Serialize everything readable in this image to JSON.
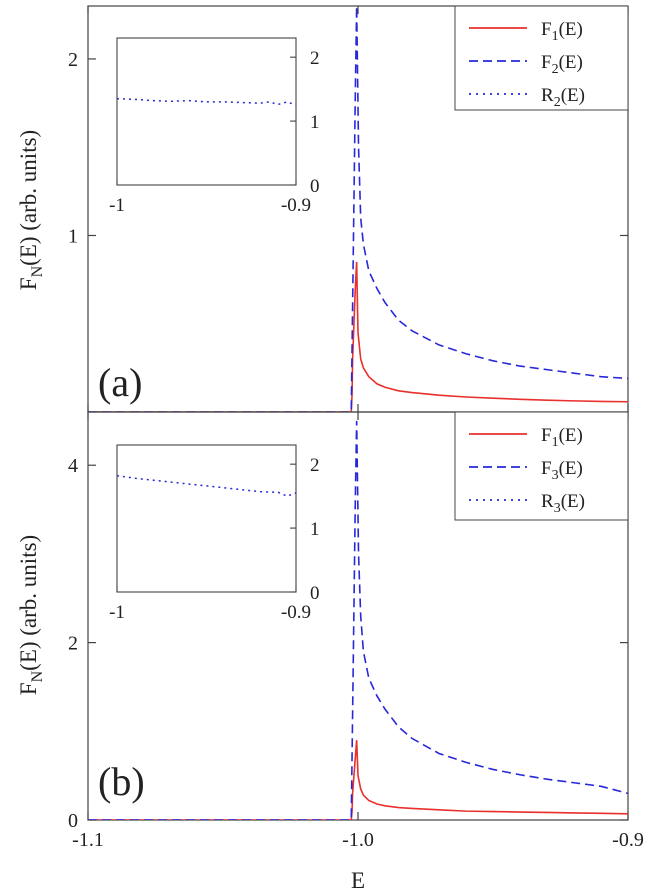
{
  "chart_data": [
    {
      "type": "line",
      "panel_label": "(a)",
      "ylabel": "F_N(E) (arb. units)",
      "xlim": [
        -1.1,
        -0.9
      ],
      "ylim": [
        0,
        2.3
      ],
      "yticks": [
        1,
        2
      ],
      "ytick_labels": [
        "1",
        "2"
      ],
      "legend_position": "top-right",
      "series": [
        {
          "name": "F1(E)",
          "sub": "1",
          "style": "solid",
          "color": "#e8302c",
          "x": [
            -1.1,
            -1.0025,
            -1.0022,
            -1.002,
            -1.0015,
            -1.001,
            -1.0005,
            -1.0,
            -0.999,
            -0.998,
            -0.996,
            -0.993,
            -0.99,
            -0.985,
            -0.98,
            -0.97,
            -0.96,
            -0.95,
            -0.94,
            -0.93,
            -0.92,
            -0.91,
            -0.9
          ],
          "y": [
            0,
            0,
            0.1,
            0.3,
            0.5,
            0.7,
            0.85,
            0.45,
            0.3,
            0.25,
            0.2,
            0.16,
            0.14,
            0.12,
            0.11,
            0.095,
            0.085,
            0.078,
            0.072,
            0.067,
            0.063,
            0.06,
            0.058
          ]
        },
        {
          "name": "F2(E)",
          "sub": "2",
          "style": "dashed",
          "color": "#2828d8",
          "x": [
            -1.1,
            -1.0025,
            -1.002,
            -1.0015,
            -1.001,
            -1.0005,
            -0.9998,
            -0.999,
            -0.998,
            -0.996,
            -0.993,
            -0.99,
            -0.985,
            -0.98,
            -0.97,
            -0.96,
            -0.95,
            -0.94,
            -0.93,
            -0.92,
            -0.91,
            -0.9
          ],
          "y": [
            0,
            0,
            0.6,
            1.2,
            1.8,
            2.3,
            1.5,
            1.1,
            0.95,
            0.8,
            0.7,
            0.62,
            0.52,
            0.46,
            0.38,
            0.33,
            0.29,
            0.26,
            0.24,
            0.22,
            0.2,
            0.19
          ]
        },
        {
          "name": "R2(E)",
          "sub": "2",
          "style": "dotted",
          "color": "#2828d8"
        }
      ],
      "inset": {
        "xlim": [
          -1,
          -0.9
        ],
        "ylim": [
          0,
          2.3
        ],
        "xticks": [
          -1,
          -0.9
        ],
        "xtick_labels": [
          "-1",
          "-0.9"
        ],
        "yticks": [
          0,
          1,
          2
        ],
        "ytick_labels": [
          "0",
          "1",
          "2"
        ],
        "series": {
          "name": "R2(E)",
          "x": [
            -1,
            -0.99,
            -0.98,
            -0.97,
            -0.96,
            -0.95,
            -0.94,
            -0.93,
            -0.92,
            -0.915,
            -0.91,
            -0.905,
            -0.9
          ],
          "y": [
            1.35,
            1.34,
            1.32,
            1.31,
            1.32,
            1.3,
            1.3,
            1.29,
            1.28,
            1.3,
            1.26,
            1.3,
            1.25
          ]
        }
      }
    },
    {
      "type": "line",
      "panel_label": "(b)",
      "ylabel": "F_N(E) (arb. units)",
      "xlabel": "E",
      "xlim": [
        -1.1,
        -0.9
      ],
      "ylim": [
        0,
        4.6
      ],
      "xticks": [
        -1.1,
        -1.0,
        -0.9
      ],
      "xtick_labels": [
        "-1.1",
        "-1.0",
        "-0.9"
      ],
      "yticks": [
        0,
        2,
        4
      ],
      "ytick_labels": [
        "0",
        "2",
        "4"
      ],
      "legend_position": "top-right",
      "series": [
        {
          "name": "F1(E)",
          "sub": "1",
          "style": "solid",
          "color": "#e8302c",
          "x": [
            -1.1,
            -1.0025,
            -1.0022,
            -1.002,
            -1.0015,
            -1.001,
            -1.0005,
            -1.0,
            -0.999,
            -0.998,
            -0.996,
            -0.993,
            -0.99,
            -0.985,
            -0.98,
            -0.97,
            -0.96,
            -0.95,
            -0.94,
            -0.93,
            -0.92,
            -0.91,
            -0.9
          ],
          "y": [
            0,
            0,
            0.1,
            0.3,
            0.5,
            0.7,
            0.9,
            0.5,
            0.35,
            0.28,
            0.22,
            0.18,
            0.16,
            0.14,
            0.13,
            0.115,
            0.1,
            0.095,
            0.09,
            0.085,
            0.08,
            0.075,
            0.07
          ]
        },
        {
          "name": "F3(E)",
          "sub": "3",
          "style": "dashed",
          "color": "#2828d8",
          "x": [
            -1.1,
            -1.0025,
            -1.002,
            -1.0015,
            -1.001,
            -1.0005,
            -0.9998,
            -0.999,
            -0.998,
            -0.996,
            -0.993,
            -0.99,
            -0.985,
            -0.98,
            -0.97,
            -0.96,
            -0.95,
            -0.94,
            -0.93,
            -0.92,
            -0.91,
            -0.9
          ],
          "y": [
            0,
            0,
            1.2,
            2.4,
            3.6,
            4.5,
            3.0,
            2.3,
            1.9,
            1.6,
            1.4,
            1.25,
            1.05,
            0.92,
            0.75,
            0.65,
            0.57,
            0.51,
            0.46,
            0.42,
            0.38,
            0.3
          ]
        },
        {
          "name": "R3(E)",
          "sub": "3",
          "style": "dotted",
          "color": "#2828d8"
        }
      ],
      "inset": {
        "xlim": [
          -1,
          -0.9
        ],
        "ylim": [
          0,
          2.3
        ],
        "xticks": [
          -1,
          -0.9
        ],
        "xtick_labels": [
          "-1",
          "-0.9"
        ],
        "yticks": [
          0,
          1,
          2
        ],
        "ytick_labels": [
          "0",
          "1",
          "2"
        ],
        "series": {
          "name": "R3(E)",
          "x": [
            -1,
            -0.99,
            -0.98,
            -0.97,
            -0.96,
            -0.95,
            -0.94,
            -0.93,
            -0.92,
            -0.91,
            -0.905,
            -0.9
          ],
          "y": [
            1.82,
            1.78,
            1.75,
            1.72,
            1.69,
            1.66,
            1.63,
            1.6,
            1.57,
            1.56,
            1.5,
            1.55
          ]
        }
      }
    }
  ]
}
